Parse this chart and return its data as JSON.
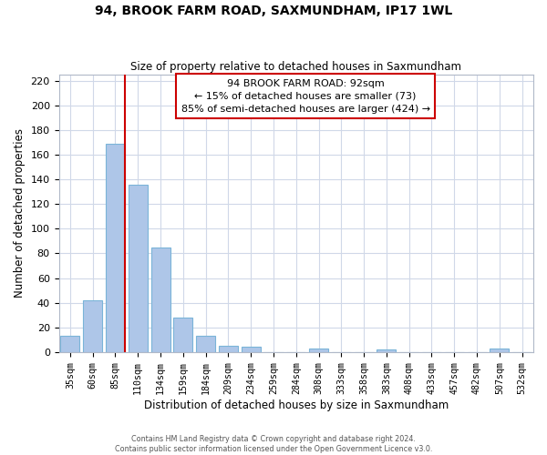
{
  "title": "94, BROOK FARM ROAD, SAXMUNDHAM, IP17 1WL",
  "subtitle": "Size of property relative to detached houses in Saxmundham",
  "xlabel": "Distribution of detached houses by size in Saxmundham",
  "ylabel": "Number of detached properties",
  "bar_labels": [
    "35sqm",
    "60sqm",
    "85sqm",
    "110sqm",
    "134sqm",
    "159sqm",
    "184sqm",
    "209sqm",
    "234sqm",
    "259sqm",
    "284sqm",
    "308sqm",
    "333sqm",
    "358sqm",
    "383sqm",
    "408sqm",
    "433sqm",
    "457sqm",
    "482sqm",
    "507sqm",
    "532sqm"
  ],
  "bar_values": [
    13,
    42,
    169,
    136,
    85,
    28,
    13,
    5,
    4,
    0,
    0,
    3,
    0,
    0,
    2,
    0,
    0,
    0,
    0,
    3,
    0
  ],
  "bar_color": "#aec6e8",
  "bar_edge_color": "#7ab4d8",
  "vline_color": "#cc0000",
  "ylim": [
    0,
    225
  ],
  "yticks": [
    0,
    20,
    40,
    60,
    80,
    100,
    120,
    140,
    160,
    180,
    200,
    220
  ],
  "annotation_title": "94 BROOK FARM ROAD: 92sqm",
  "annotation_line1": "← 15% of detached houses are smaller (73)",
  "annotation_line2": "85% of semi-detached houses are larger (424) →",
  "footer_line1": "Contains HM Land Registry data © Crown copyright and database right 2024.",
  "footer_line2": "Contains public sector information licensed under the Open Government Licence v3.0.",
  "bg_color": "#ffffff",
  "grid_color": "#d0d8e8"
}
